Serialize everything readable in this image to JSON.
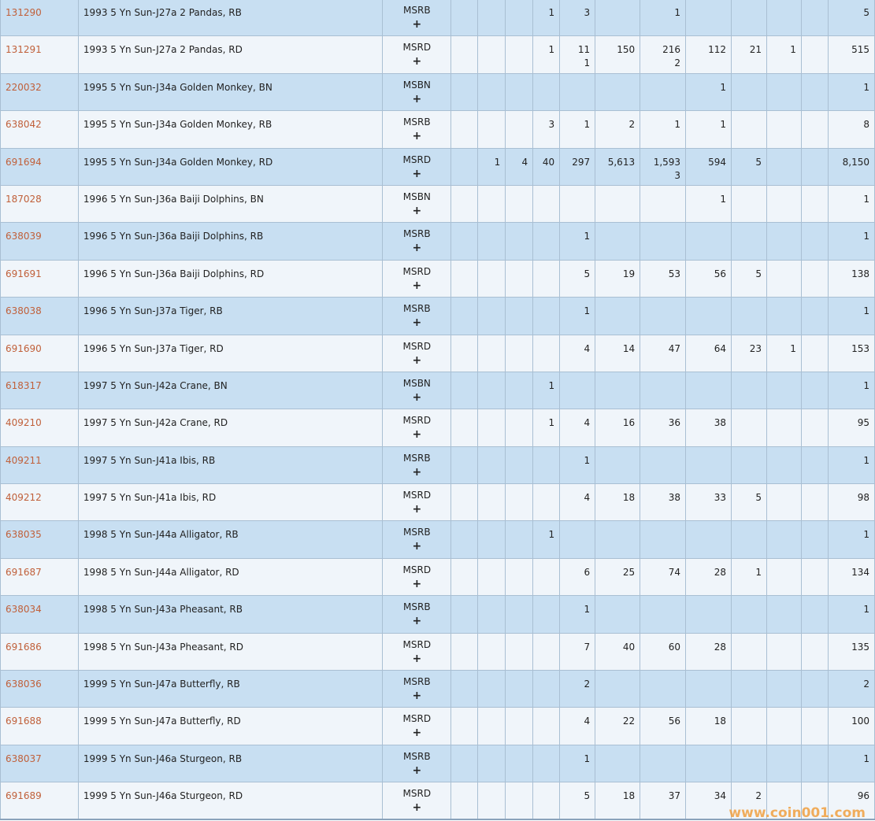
{
  "colors": {
    "row_odd": "#c8dff2",
    "row_even": "#f0f5fa",
    "id_link": "#c0603a",
    "watermark": "#f0a040"
  },
  "plus_icon": "+",
  "watermark": "www.coin001.com",
  "rows": [
    {
      "id": "131290",
      "desc": "1993 5 Yn Sun-J27a 2 Pandas, RB",
      "type": "MSRB",
      "cols": [
        "",
        "",
        "",
        "1",
        "3",
        "",
        "1",
        "",
        "",
        "",
        ""
      ],
      "total": "5"
    },
    {
      "id": "131291",
      "desc": "1993 5 Yn Sun-J27a 2 Pandas, RD",
      "type": "MSRD",
      "cols": [
        "",
        "",
        "",
        "1",
        "11\n1",
        "150",
        "216\n2",
        "112",
        "21",
        "1",
        ""
      ],
      "total": "515"
    },
    {
      "id": "220032",
      "desc": "1995 5 Yn Sun-J34a Golden Monkey, BN",
      "type": "MSBN",
      "cols": [
        "",
        "",
        "",
        "",
        "",
        "",
        "",
        "1",
        "",
        "",
        ""
      ],
      "total": "1"
    },
    {
      "id": "638042",
      "desc": "1995 5 Yn Sun-J34a Golden Monkey, RB",
      "type": "MSRB",
      "cols": [
        "",
        "",
        "",
        "3",
        "1",
        "2",
        "1",
        "1",
        "",
        "",
        ""
      ],
      "total": "8"
    },
    {
      "id": "691694",
      "desc": "1995 5 Yn Sun-J34a Golden Monkey, RD",
      "type": "MSRD",
      "cols": [
        "",
        "1",
        "4",
        "40",
        "297",
        "5,613",
        "1,593\n3",
        "594",
        "5",
        "",
        ""
      ],
      "total": "8,150"
    },
    {
      "id": "187028",
      "desc": "1996 5 Yn Sun-J36a Baiji Dolphins, BN",
      "type": "MSBN",
      "cols": [
        "",
        "",
        "",
        "",
        "",
        "",
        "",
        "1",
        "",
        "",
        ""
      ],
      "total": "1"
    },
    {
      "id": "638039",
      "desc": "1996 5 Yn Sun-J36a Baiji Dolphins, RB",
      "type": "MSRB",
      "cols": [
        "",
        "",
        "",
        "",
        "1",
        "",
        "",
        "",
        "",
        "",
        ""
      ],
      "total": "1"
    },
    {
      "id": "691691",
      "desc": "1996 5 Yn Sun-J36a Baiji Dolphins, RD",
      "type": "MSRD",
      "cols": [
        "",
        "",
        "",
        "",
        "5",
        "19",
        "53",
        "56",
        "5",
        "",
        ""
      ],
      "total": "138"
    },
    {
      "id": "638038",
      "desc": "1996 5 Yn Sun-J37a Tiger, RB",
      "type": "MSRB",
      "cols": [
        "",
        "",
        "",
        "",
        "1",
        "",
        "",
        "",
        "",
        "",
        ""
      ],
      "total": "1"
    },
    {
      "id": "691690",
      "desc": "1996 5 Yn Sun-J37a Tiger, RD",
      "type": "MSRD",
      "cols": [
        "",
        "",
        "",
        "",
        "4",
        "14",
        "47",
        "64",
        "23",
        "1",
        ""
      ],
      "total": "153"
    },
    {
      "id": "618317",
      "desc": "1997 5 Yn Sun-J42a Crane, BN",
      "type": "MSBN",
      "cols": [
        "",
        "",
        "",
        "1",
        "",
        "",
        "",
        "",
        "",
        "",
        ""
      ],
      "total": "1"
    },
    {
      "id": "409210",
      "desc": "1997 5 Yn Sun-J42a Crane, RD",
      "type": "MSRD",
      "cols": [
        "",
        "",
        "",
        "1",
        "4",
        "16",
        "36",
        "38",
        "",
        "",
        ""
      ],
      "total": "95"
    },
    {
      "id": "409211",
      "desc": "1997 5 Yn Sun-J41a Ibis, RB",
      "type": "MSRB",
      "cols": [
        "",
        "",
        "",
        "",
        "1",
        "",
        "",
        "",
        "",
        "",
        ""
      ],
      "total": "1"
    },
    {
      "id": "409212",
      "desc": "1997 5 Yn Sun-J41a Ibis, RD",
      "type": "MSRD",
      "cols": [
        "",
        "",
        "",
        "",
        "4",
        "18",
        "38",
        "33",
        "5",
        "",
        ""
      ],
      "total": "98"
    },
    {
      "id": "638035",
      "desc": "1998 5 Yn Sun-J44a Alligator, RB",
      "type": "MSRB",
      "cols": [
        "",
        "",
        "",
        "1",
        "",
        "",
        "",
        "",
        "",
        "",
        ""
      ],
      "total": "1"
    },
    {
      "id": "691687",
      "desc": "1998 5 Yn Sun-J44a Alligator, RD",
      "type": "MSRD",
      "cols": [
        "",
        "",
        "",
        "",
        "6",
        "25",
        "74",
        "28",
        "1",
        "",
        ""
      ],
      "total": "134"
    },
    {
      "id": "638034",
      "desc": "1998 5 Yn Sun-J43a Pheasant, RB",
      "type": "MSRB",
      "cols": [
        "",
        "",
        "",
        "",
        "1",
        "",
        "",
        "",
        "",
        "",
        ""
      ],
      "total": "1"
    },
    {
      "id": "691686",
      "desc": "1998 5 Yn Sun-J43a Pheasant, RD",
      "type": "MSRD",
      "cols": [
        "",
        "",
        "",
        "",
        "7",
        "40",
        "60",
        "28",
        "",
        "",
        ""
      ],
      "total": "135"
    },
    {
      "id": "638036",
      "desc": "1999 5 Yn Sun-J47a Butterfly, RB",
      "type": "MSRB",
      "cols": [
        "",
        "",
        "",
        "",
        "2",
        "",
        "",
        "",
        "",
        "",
        ""
      ],
      "total": "2"
    },
    {
      "id": "691688",
      "desc": "1999 5 Yn Sun-J47a Butterfly, RD",
      "type": "MSRD",
      "cols": [
        "",
        "",
        "",
        "",
        "4",
        "22",
        "56",
        "18",
        "",
        "",
        ""
      ],
      "total": "100"
    },
    {
      "id": "638037",
      "desc": "1999 5 Yn Sun-J46a Sturgeon, RB",
      "type": "MSRB",
      "cols": [
        "",
        "",
        "",
        "",
        "1",
        "",
        "",
        "",
        "",
        "",
        ""
      ],
      "total": "1"
    },
    {
      "id": "691689",
      "desc": "1999 5 Yn Sun-J46a Sturgeon, RD",
      "type": "MSRD",
      "cols": [
        "",
        "",
        "",
        "",
        "5",
        "18",
        "37",
        "34",
        "2",
        "",
        ""
      ],
      "total": "96"
    }
  ]
}
